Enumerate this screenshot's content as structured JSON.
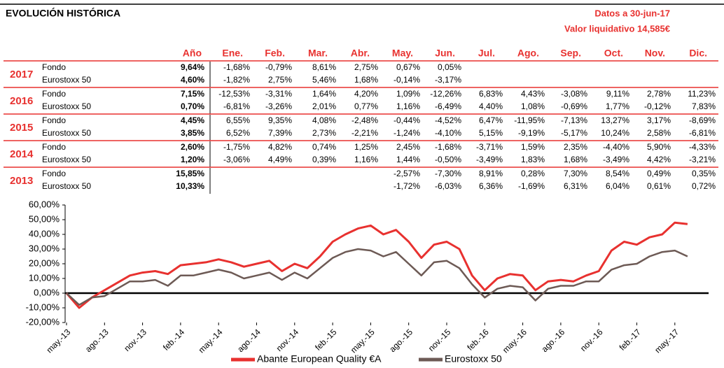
{
  "header": {
    "title": "EVOLUCIÓN HISTÓRICA",
    "date": "Datos a 30-jun-17",
    "nav": "Valor liquidativo 14,585€"
  },
  "table": {
    "columns": [
      "Año",
      "Ene.",
      "Feb.",
      "Mar.",
      "Abr.",
      "May.",
      "Jun.",
      "Jul.",
      "Ago.",
      "Sep.",
      "Oct.",
      "Nov.",
      "Dic."
    ],
    "blocks": [
      {
        "year": "2017",
        "rows": [
          {
            "label": "Fondo",
            "cells": [
              "9,64%",
              "-1,68%",
              "-0,79%",
              "8,61%",
              "2,75%",
              "0,67%",
              "0,05%",
              null,
              null,
              null,
              null,
              null,
              null
            ]
          },
          {
            "label": "Eurostoxx 50",
            "cells": [
              "4,60%",
              "-1,82%",
              "2,75%",
              "5,46%",
              "1,68%",
              "-0,14%",
              "-3,17%",
              null,
              null,
              null,
              null,
              null,
              null
            ]
          }
        ]
      },
      {
        "year": "2016",
        "rows": [
          {
            "label": "Fondo",
            "cells": [
              "7,15%",
              "-12,53%",
              "-3,31%",
              "1,64%",
              "4,20%",
              "1,09%",
              "-12,26%",
              "6,83%",
              "4,43%",
              "-3,08%",
              "9,11%",
              "2,78%",
              "11,23%"
            ]
          },
          {
            "label": "Eurostoxx 50",
            "cells": [
              "0,70%",
              "-6,81%",
              "-3,26%",
              "2,01%",
              "0,77%",
              "1,16%",
              "-6,49%",
              "4,40%",
              "1,08%",
              "-0,69%",
              "1,77%",
              "-0,12%",
              "7,83%"
            ]
          }
        ]
      },
      {
        "year": "2015",
        "rows": [
          {
            "label": "Fondo",
            "cells": [
              "4,45%",
              "6,55%",
              "9,35%",
              "4,08%",
              "-2,48%",
              "-0,44%",
              "-4,52%",
              "6,47%",
              "-11,95%",
              "-7,13%",
              "13,27%",
              "3,17%",
              "-8,69%"
            ]
          },
          {
            "label": "Eurostoxx 50",
            "cells": [
              "3,85%",
              "6,52%",
              "7,39%",
              "2,73%",
              "-2,21%",
              "-1,24%",
              "-4,10%",
              "5,15%",
              "-9,19%",
              "-5,17%",
              "10,24%",
              "2,58%",
              "-6,81%"
            ]
          }
        ]
      },
      {
        "year": "2014",
        "rows": [
          {
            "label": "Fondo",
            "cells": [
              "2,60%",
              "-1,75%",
              "4,82%",
              "0,74%",
              "1,25%",
              "2,45%",
              "-1,68%",
              "-3,71%",
              "1,59%",
              "2,35%",
              "-4,40%",
              "5,90%",
              "-4,33%"
            ]
          },
          {
            "label": "Eurostoxx 50",
            "cells": [
              "1,20%",
              "-3,06%",
              "4,49%",
              "0,39%",
              "1,16%",
              "1,44%",
              "-0,50%",
              "-3,49%",
              "1,83%",
              "1,68%",
              "-3,49%",
              "4,42%",
              "-3,21%"
            ]
          }
        ]
      },
      {
        "year": "2013",
        "rows": [
          {
            "label": "Fondo",
            "cells": [
              "15,85%",
              null,
              null,
              null,
              null,
              "-2,57%",
              "-7,30%",
              "8,91%",
              "0,28%",
              "7,30%",
              "8,54%",
              "0,49%",
              "0,35%"
            ]
          },
          {
            "label": "Eurostoxx 50",
            "cells": [
              "10,33%",
              null,
              null,
              null,
              null,
              "-1,72%",
              "-6,03%",
              "6,36%",
              "-1,69%",
              "6,31%",
              "6,04%",
              "0,61%",
              "0,72%"
            ]
          }
        ]
      }
    ]
  },
  "chart_data": {
    "type": "line",
    "categories": [
      "may.-13",
      null,
      null,
      "ago.-13",
      null,
      null,
      "nov.-13",
      null,
      null,
      "feb.-14",
      null,
      null,
      "may.-14",
      null,
      null,
      "ago.-14",
      null,
      null,
      "nov.-14",
      null,
      null,
      "feb.-15",
      null,
      null,
      "may.-15",
      null,
      null,
      "ago.-15",
      null,
      null,
      "nov.-15",
      null,
      null,
      "feb.-16",
      null,
      null,
      "may.-16",
      null,
      null,
      "ago.-16",
      null,
      null,
      "nov.-16",
      null,
      null,
      "feb.-17",
      null,
      null,
      "may.-17",
      null
    ],
    "series": [
      {
        "name": "Abante European Quality €A",
        "color": "#e8312f",
        "values": [
          0,
          -10,
          -3,
          2,
          7,
          12,
          14,
          15,
          13,
          19,
          20,
          21,
          23,
          21,
          18,
          20,
          22,
          15,
          20,
          17,
          25,
          35,
          40,
          44,
          46,
          40,
          43,
          35,
          24,
          33,
          35,
          30,
          12,
          2,
          10,
          13,
          12,
          2,
          8,
          9,
          8,
          12,
          15,
          29,
          35,
          33,
          38,
          40,
          48,
          47
        ]
      },
      {
        "name": "Eurostoxx 50",
        "color": "#6d5a55",
        "values": [
          0,
          -8,
          -3,
          -2,
          3,
          8,
          8,
          9,
          5,
          12,
          12,
          14,
          16,
          14,
          10,
          12,
          14,
          9,
          14,
          10,
          17,
          24,
          28,
          30,
          29,
          25,
          28,
          20,
          12,
          21,
          22,
          17,
          6,
          -3,
          3,
          5,
          4,
          -5,
          3,
          5,
          5,
          8,
          8,
          16,
          19,
          20,
          25,
          28,
          29,
          25
        ]
      }
    ],
    "ylim": [
      -20,
      60
    ],
    "yticks": [
      {
        "value": -20,
        "label": "-20,00%"
      },
      {
        "value": -10,
        "label": "-10,00%"
      },
      {
        "value": 0,
        "label": "0,00%"
      },
      {
        "value": 10,
        "label": "10,00%"
      },
      {
        "value": 20,
        "label": "20,00%"
      },
      {
        "value": 30,
        "label": "30,00%"
      },
      {
        "value": 40,
        "label": "40,00%"
      },
      {
        "value": 50,
        "label": "50,00%"
      },
      {
        "value": 60,
        "label": "60,00%"
      }
    ],
    "grid": false,
    "legend": "bottom"
  }
}
